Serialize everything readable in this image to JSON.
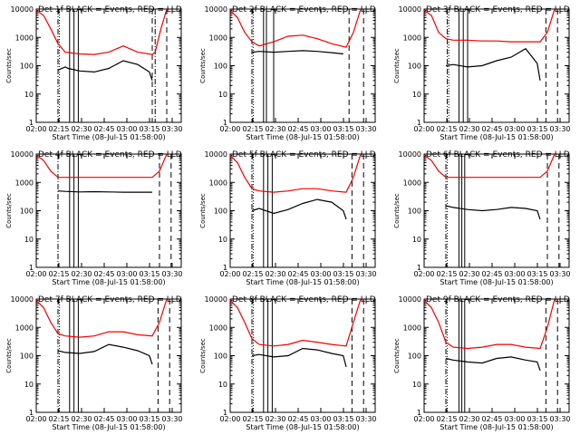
{
  "chart_data": [
    {
      "type": "line",
      "title": "Det 1f BLACK = Events, RED = LLD",
      "xlabel": "Start Time (08-Jul-15 01:58:00)",
      "ylabel": "Counts/sec",
      "x_ticks": [
        "02:00",
        "02:15",
        "02:30",
        "02:45",
        "03:00",
        "03:15",
        "03:30"
      ],
      "y_ticks": [
        "1",
        "10",
        "100",
        "1000",
        "10000"
      ],
      "yscale": "log",
      "ylim": [
        1,
        10000
      ],
      "series": [
        {
          "color": "#000000",
          "x": [
            0.15,
            0.2,
            0.22,
            0.3,
            0.4,
            0.5,
            0.6,
            0.7,
            0.78,
            0.8
          ],
          "y": [
            70,
            90,
            80,
            65,
            60,
            80,
            150,
            110,
            60,
            30
          ]
        },
        {
          "color": "#ee0000",
          "x": [
            0.0,
            0.05,
            0.1,
            0.15,
            0.2,
            0.3,
            0.4,
            0.5,
            0.6,
            0.7,
            0.8,
            0.82,
            0.86,
            0.9
          ],
          "y": [
            9000,
            6000,
            2000,
            600,
            300,
            260,
            250,
            300,
            500,
            300,
            250,
            300,
            2000,
            10000
          ]
        }
      ],
      "markers": {
        "dashdot": [
          0.15,
          0.82
        ],
        "dotted": [
          0.16
        ],
        "solid": [
          0.23,
          0.26,
          0.29
        ],
        "dashed": [
          0.8,
          0.9
        ]
      }
    },
    {
      "type": "line",
      "title": "Det 2f BLACK = Events, RED = LLD",
      "xlabel": "Start Time (08-Jul-15 01:58:00)",
      "ylabel": "Counts/sec",
      "x_ticks": [
        "02:00",
        "02:15",
        "02:30",
        "02:45",
        "03:00",
        "03:15",
        "03:30"
      ],
      "y_ticks": [
        "1",
        "10",
        "100",
        "1000",
        "10000"
      ],
      "yscale": "log",
      "ylim": [
        1,
        10000
      ],
      "series": [
        {
          "color": "#000000",
          "x": [
            0.15,
            0.2,
            0.3,
            0.4,
            0.5,
            0.6,
            0.7,
            0.78
          ],
          "y": [
            300,
            320,
            300,
            320,
            340,
            320,
            290,
            260
          ]
        },
        {
          "color": "#ee0000",
          "x": [
            0.0,
            0.05,
            0.1,
            0.15,
            0.2,
            0.3,
            0.4,
            0.5,
            0.6,
            0.7,
            0.8,
            0.85,
            0.9
          ],
          "y": [
            9000,
            5000,
            1500,
            700,
            500,
            700,
            1100,
            1200,
            900,
            600,
            450,
            1500,
            10000
          ]
        }
      ],
      "markers": {
        "dashdot": [
          0.15
        ],
        "dotted": [
          0.16
        ],
        "solid": [
          0.23,
          0.25,
          0.3
        ],
        "dashed": [
          0.82,
          0.92
        ]
      }
    },
    {
      "type": "line",
      "title": "Det 3f BLACK = Events, RED = LLD",
      "xlabel": "Start Time (08-Jul-15 01:58:00)",
      "ylabel": "Counts/sec",
      "x_ticks": [
        "02:00",
        "02:15",
        "02:30",
        "02:45",
        "03:00",
        "03:15",
        "03:30"
      ],
      "y_ticks": [
        "1",
        "10",
        "100",
        "1000",
        "10000"
      ],
      "yscale": "log",
      "ylim": [
        1,
        10000
      ],
      "series": [
        {
          "color": "#000000",
          "x": [
            0.15,
            0.2,
            0.3,
            0.4,
            0.5,
            0.6,
            0.7,
            0.78,
            0.8
          ],
          "y": [
            100,
            110,
            90,
            100,
            150,
            200,
            400,
            120,
            30
          ]
        },
        {
          "color": "#ee0000",
          "x": [
            0.0,
            0.05,
            0.1,
            0.15,
            0.2,
            0.3,
            0.4,
            0.5,
            0.6,
            0.7,
            0.8,
            0.85,
            0.9
          ],
          "y": [
            9000,
            6000,
            1500,
            900,
            800,
            800,
            750,
            750,
            700,
            700,
            700,
            1500,
            10000
          ]
        }
      ],
      "markers": {
        "dashdot": [
          0.16
        ],
        "dotted": [
          0.17
        ],
        "solid": [
          0.24,
          0.27,
          0.3
        ],
        "dashed": [
          0.84,
          0.92
        ]
      }
    },
    {
      "type": "line",
      "title": "Det 4f BLACK = Events, RED = LLD",
      "xlabel": "Start Time (08-Jul-15 01:58:00)",
      "ylabel": "Counts/sec",
      "x_ticks": [
        "02:00",
        "02:15",
        "02:30",
        "02:45",
        "03:00",
        "03:15",
        "03:30"
      ],
      "y_ticks": [
        "1",
        "10",
        "100",
        "1000",
        "10000"
      ],
      "yscale": "log",
      "ylim": [
        1,
        10000
      ],
      "series": [
        {
          "color": "#000000",
          "x": [
            0.15,
            0.2,
            0.3,
            0.4,
            0.5,
            0.6,
            0.7,
            0.8
          ],
          "y": [
            500,
            480,
            460,
            470,
            460,
            450,
            450,
            450
          ]
        },
        {
          "color": "#ee0000",
          "x": [
            0.0,
            0.05,
            0.1,
            0.15,
            0.2,
            0.4,
            0.6,
            0.8,
            0.85,
            0.9
          ],
          "y": [
            9000,
            6000,
            2500,
            1500,
            1500,
            1500,
            1500,
            1500,
            2500,
            10000
          ]
        }
      ],
      "markers": {
        "dashdot": [
          0.15
        ],
        "dotted": [],
        "solid": [
          0.23,
          0.26,
          0.29
        ],
        "dashed": [
          0.85,
          0.93
        ]
      }
    },
    {
      "type": "line",
      "title": "Det 5f BLACK = Events, RED = LLD",
      "xlabel": "Start Time (08-Jul-15 01:58:00)",
      "ylabel": "Counts/sec",
      "x_ticks": [
        "02:00",
        "02:15",
        "02:30",
        "02:45",
        "03:00",
        "03:15",
        "03:30"
      ],
      "y_ticks": [
        "1",
        "10",
        "100",
        "1000",
        "10000"
      ],
      "yscale": "log",
      "ylim": [
        1,
        10000
      ],
      "series": [
        {
          "color": "#000000",
          "x": [
            0.15,
            0.2,
            0.3,
            0.4,
            0.5,
            0.6,
            0.7,
            0.78,
            0.8
          ],
          "y": [
            100,
            120,
            80,
            110,
            180,
            250,
            200,
            100,
            50
          ]
        },
        {
          "color": "#ee0000",
          "x": [
            0.0,
            0.05,
            0.1,
            0.15,
            0.2,
            0.3,
            0.4,
            0.5,
            0.6,
            0.7,
            0.8,
            0.85,
            0.9
          ],
          "y": [
            9000,
            5000,
            1500,
            600,
            500,
            450,
            500,
            600,
            600,
            500,
            450,
            1500,
            10000
          ]
        }
      ],
      "markers": {
        "dashdot": [
          0.15
        ],
        "dotted": [
          0.16
        ],
        "solid": [
          0.23,
          0.26,
          0.29
        ],
        "dashed": [
          0.84,
          0.92
        ]
      }
    },
    {
      "type": "line",
      "title": "Det 6f BLACK = Events, RED = LLD",
      "xlabel": "Start Time (08-Jul-15 01:58:00)",
      "ylabel": "Counts/sec",
      "x_ticks": [
        "02:00",
        "02:15",
        "02:30",
        "02:45",
        "03:00",
        "03:15",
        "03:30"
      ],
      "y_ticks": [
        "1",
        "10",
        "100",
        "1000",
        "10000"
      ],
      "yscale": "log",
      "ylim": [
        1,
        10000
      ],
      "series": [
        {
          "color": "#000000",
          "x": [
            0.15,
            0.2,
            0.3,
            0.4,
            0.5,
            0.6,
            0.7,
            0.78,
            0.8
          ],
          "y": [
            150,
            130,
            110,
            100,
            110,
            130,
            120,
            100,
            50
          ]
        },
        {
          "color": "#ee0000",
          "x": [
            0.0,
            0.05,
            0.1,
            0.15,
            0.2,
            0.4,
            0.6,
            0.8,
            0.85,
            0.9
          ],
          "y": [
            9000,
            6000,
            2500,
            1500,
            1500,
            1500,
            1500,
            1500,
            2500,
            10000
          ]
        }
      ],
      "markers": {
        "dashdot": [
          0.15
        ],
        "dotted": [
          0.16
        ],
        "solid": [
          0.24,
          0.26,
          0.28
        ],
        "dashed": [
          0.85,
          0.93
        ]
      }
    },
    {
      "type": "line",
      "title": "Det 7f BLACK = Events, RED = LLD",
      "xlabel": "Start Time (08-Jul-15 01:58:00)",
      "ylabel": "Counts/sec",
      "x_ticks": [
        "02:00",
        "02:15",
        "02:30",
        "02:45",
        "03:00",
        "03:15",
        "03:30"
      ],
      "y_ticks": [
        "1",
        "10",
        "100",
        "1000",
        "10000"
      ],
      "yscale": "log",
      "ylim": [
        1,
        10000
      ],
      "series": [
        {
          "color": "#000000",
          "x": [
            0.15,
            0.2,
            0.3,
            0.4,
            0.5,
            0.6,
            0.7,
            0.78,
            0.8
          ],
          "y": [
            150,
            130,
            120,
            140,
            250,
            200,
            150,
            100,
            50
          ]
        },
        {
          "color": "#ee0000",
          "x": [
            0.0,
            0.05,
            0.1,
            0.15,
            0.2,
            0.3,
            0.4,
            0.5,
            0.6,
            0.7,
            0.8,
            0.85,
            0.9
          ],
          "y": [
            9000,
            5000,
            1500,
            600,
            500,
            450,
            500,
            700,
            700,
            550,
            500,
            1500,
            10000
          ]
        }
      ],
      "markers": {
        "dashdot": [
          0.15
        ],
        "dotted": [
          0.16
        ],
        "solid": [
          0.23,
          0.26,
          0.29
        ],
        "dashed": [
          0.84,
          0.92
        ]
      }
    },
    {
      "type": "line",
      "title": "Det 8f BLACK = Events, RED = LLD",
      "xlabel": "Start Time (08-Jul-15 01:58:00)",
      "ylabel": "Counts/sec",
      "x_ticks": [
        "02:00",
        "02:15",
        "02:30",
        "02:45",
        "03:00",
        "03:15",
        "03:30"
      ],
      "y_ticks": [
        "1",
        "10",
        "100",
        "1000",
        "10000"
      ],
      "yscale": "log",
      "ylim": [
        1,
        10000
      ],
      "series": [
        {
          "color": "#000000",
          "x": [
            0.15,
            0.2,
            0.3,
            0.4,
            0.5,
            0.6,
            0.7,
            0.78,
            0.8
          ],
          "y": [
            100,
            110,
            90,
            100,
            180,
            160,
            120,
            100,
            40
          ]
        },
        {
          "color": "#ee0000",
          "x": [
            0.0,
            0.05,
            0.1,
            0.15,
            0.2,
            0.3,
            0.4,
            0.5,
            0.6,
            0.7,
            0.8,
            0.85,
            0.9
          ],
          "y": [
            9000,
            5000,
            1500,
            400,
            250,
            220,
            250,
            350,
            300,
            250,
            220,
            1500,
            10000
          ]
        }
      ],
      "markers": {
        "dashdot": [
          0.15
        ],
        "dotted": [
          0.16
        ],
        "solid": [
          0.23,
          0.26,
          0.29
        ],
        "dashed": [
          0.84,
          0.92
        ]
      }
    },
    {
      "type": "line",
      "title": "Det 9f BLACK = Events, RED = LLD",
      "xlabel": "Start Time (08-Jul-15 01:58:00)",
      "ylabel": "Counts/sec",
      "x_ticks": [
        "02:00",
        "02:15",
        "02:30",
        "02:45",
        "03:00",
        "03:15",
        "03:30"
      ],
      "y_ticks": [
        "1",
        "10",
        "100",
        "1000",
        "10000"
      ],
      "yscale": "log",
      "ylim": [
        1,
        10000
      ],
      "series": [
        {
          "color": "#000000",
          "x": [
            0.15,
            0.2,
            0.3,
            0.4,
            0.5,
            0.6,
            0.7,
            0.78,
            0.8
          ],
          "y": [
            80,
            70,
            60,
            55,
            80,
            90,
            70,
            60,
            30
          ]
        },
        {
          "color": "#ee0000",
          "x": [
            0.0,
            0.05,
            0.1,
            0.15,
            0.2,
            0.3,
            0.4,
            0.5,
            0.6,
            0.7,
            0.8,
            0.85,
            0.9
          ],
          "y": [
            9000,
            5000,
            1500,
            300,
            200,
            180,
            200,
            250,
            250,
            200,
            180,
            1000,
            10000
          ]
        }
      ],
      "markers": {
        "dashdot": [
          0.15
        ],
        "dotted": [
          0.16
        ],
        "solid": [
          0.24,
          0.26,
          0.28
        ],
        "dashed": [
          0.84,
          0.92
        ]
      }
    }
  ]
}
